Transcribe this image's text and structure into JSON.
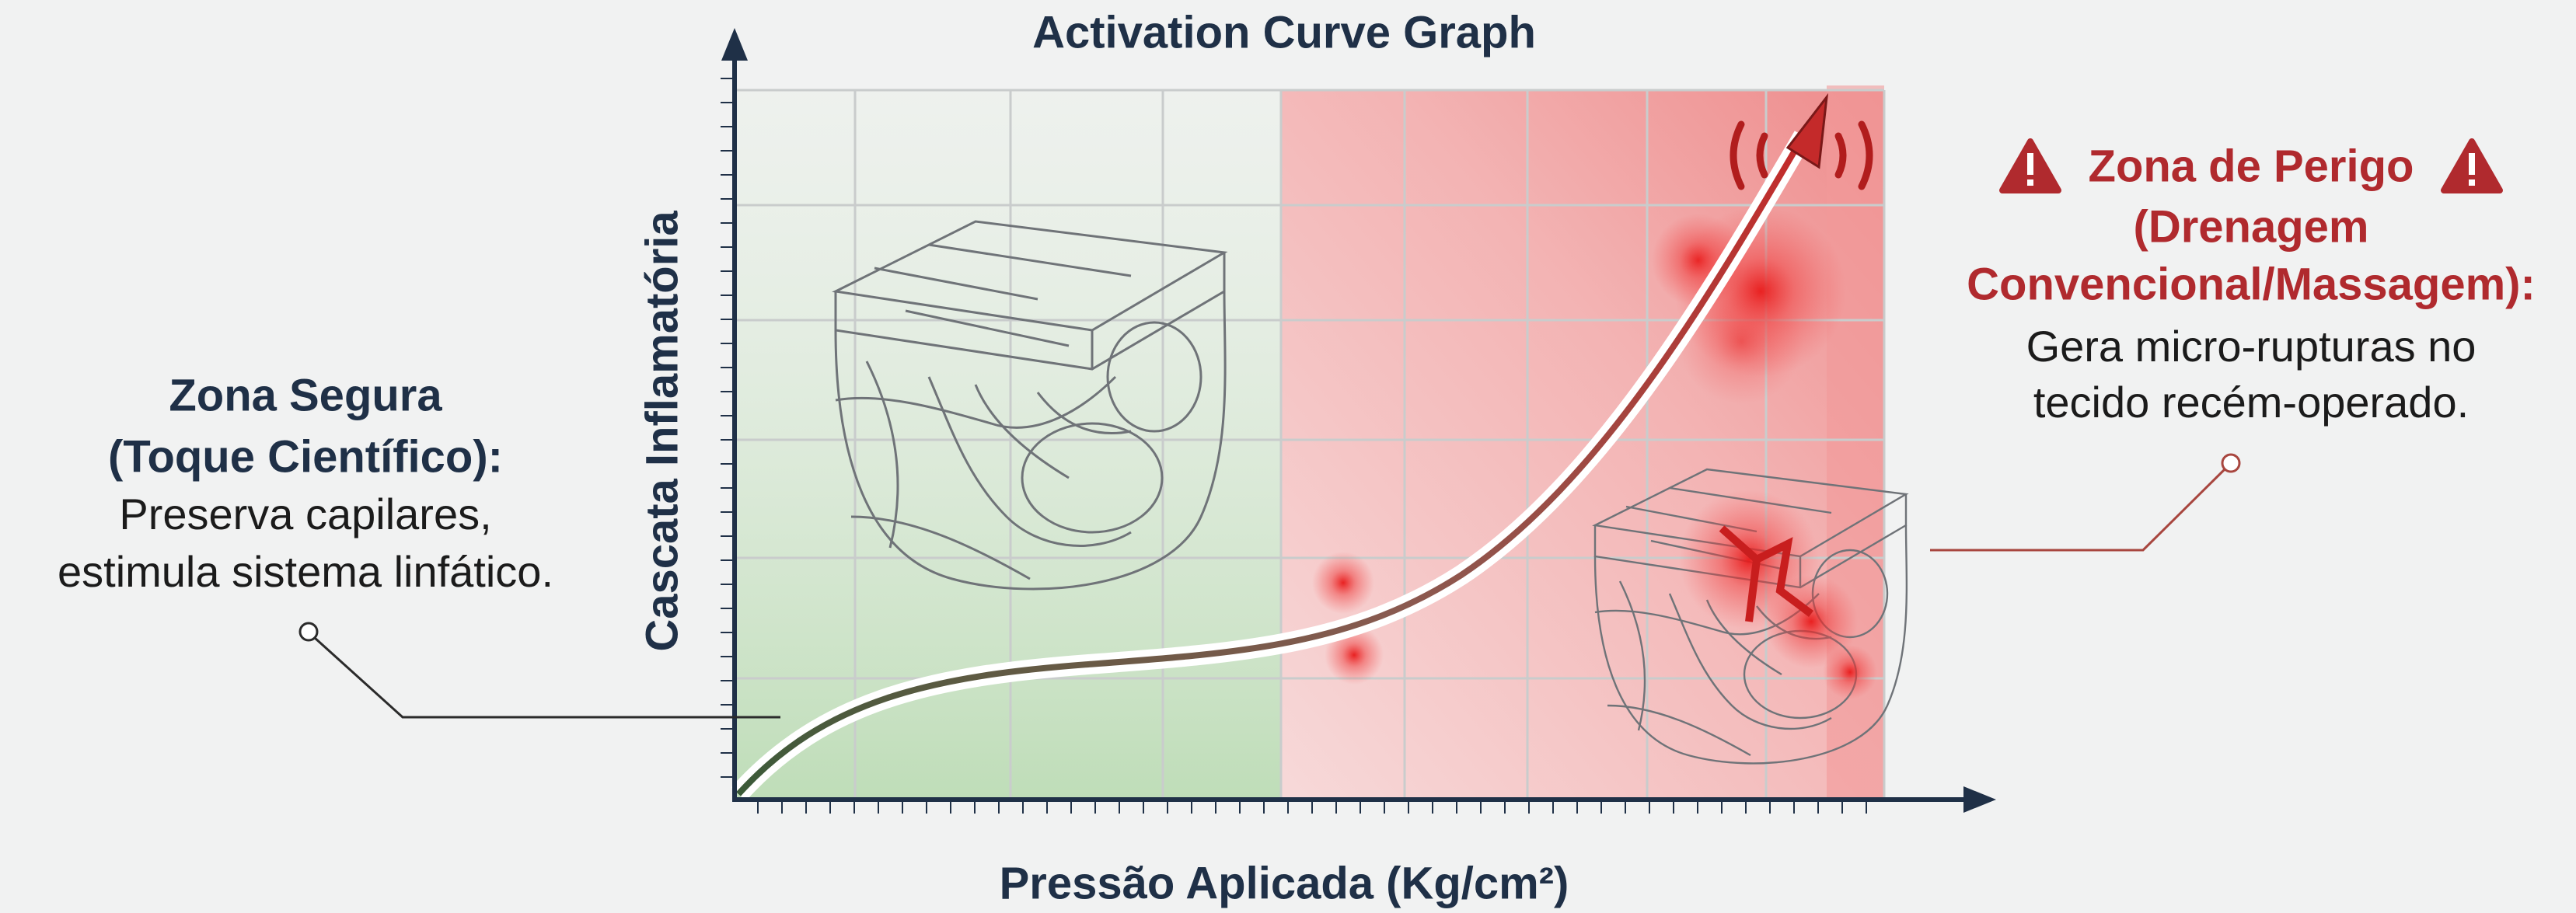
{
  "title": "Activation Curve Graph",
  "x_axis_label": "Pressão Aplicada (Kg/cm²)",
  "y_axis_label": "Cascata Inflamatória",
  "safe_zone": {
    "title": [
      "Zona Segura",
      "(Toque Científico):"
    ],
    "description": [
      "Preserva capilares,",
      "estimula sistema linfático."
    ]
  },
  "danger_zone": {
    "title": [
      "Zona de Perigo",
      "(Drenagem",
      "Convencional/Massagem):"
    ],
    "description": [
      "Gera micro-rupturas no",
      "tecido recém-operado."
    ]
  }
}
